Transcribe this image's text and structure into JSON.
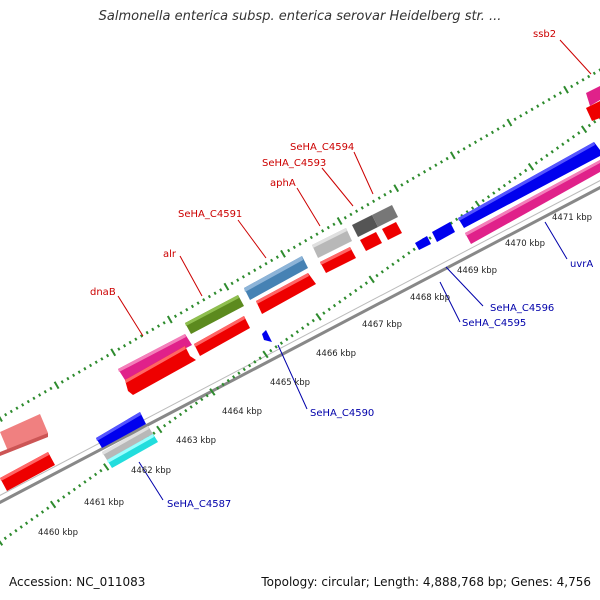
{
  "title": "Salmonella enterica subsp. enterica serovar Heidelberg str. ...",
  "footer": {
    "accession": "Accession: NC_011083",
    "stats": "Topology: circular; Length: 4,888,768 bp; Genes: 4,756"
  },
  "colors": {
    "backbone": "#888888",
    "tick": "#2e8b2e",
    "forward_label": "#cc0000",
    "reverse_label": "#0000aa"
  },
  "kbp_ticks": [
    "4460 kbp",
    "4461 kbp",
    "4462 kbp",
    "4463 kbp",
    "4464 kbp",
    "4465 kbp",
    "4466 kbp",
    "4467 kbp",
    "4468 kbp",
    "4469 kbp",
    "4470 kbp",
    "4471 kbp"
  ],
  "forward_labels": [
    {
      "text": "ssb2"
    },
    {
      "text": "SeHA_C4594"
    },
    {
      "text": "SeHA_C4593"
    },
    {
      "text": "aphA"
    },
    {
      "text": "SeHA_C4591"
    },
    {
      "text": "alr"
    },
    {
      "text": "dnaB"
    }
  ],
  "reverse_labels": [
    {
      "text": "uvrA"
    },
    {
      "text": "SeHA_C4596"
    },
    {
      "text": "SeHA_C4595"
    },
    {
      "text": "SeHA_C4590"
    },
    {
      "text": "SeHA_C4587"
    }
  ]
}
